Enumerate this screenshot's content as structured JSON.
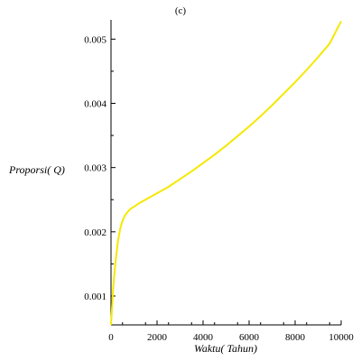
{
  "chart_data": {
    "type": "line",
    "title": "(c)",
    "xlabel": "Waktu( Tahun)",
    "ylabel": "Proporsi( Q)",
    "xlim": [
      0,
      10000
    ],
    "ylim": [
      0.00055,
      0.0053
    ],
    "x_ticks": [
      0,
      2000,
      4000,
      6000,
      8000,
      10000
    ],
    "x_tick_labels": [
      "0",
      "2000",
      "4000",
      "6000",
      "8000",
      "10000"
    ],
    "y_ticks": [
      0.001,
      0.002,
      0.003,
      0.004,
      0.005
    ],
    "y_tick_labels": [
      "0.001",
      "0.002",
      "0.003",
      "0.004",
      "0.005"
    ],
    "grid": false,
    "series": [
      {
        "color": "#f5e800",
        "x": [
          0,
          50,
          100,
          200,
          300,
          400,
          500,
          600,
          700,
          800,
          900,
          1000,
          1200,
          1500,
          2000,
          2500,
          3000,
          3500,
          4000,
          4500,
          5000,
          5500,
          6000,
          6500,
          7000,
          7500,
          8000,
          8500,
          9000,
          9500,
          10000
        ],
        "y": [
          0.00055,
          0.00085,
          0.00115,
          0.00155,
          0.00185,
          0.00205,
          0.00217,
          0.00225,
          0.0023,
          0.00234,
          0.00237,
          0.00239,
          0.00244,
          0.0025,
          0.0026,
          0.0027,
          0.00282,
          0.00294,
          0.00307,
          0.0032,
          0.00334,
          0.00349,
          0.00364,
          0.0038,
          0.00397,
          0.00415,
          0.00433,
          0.00452,
          0.00472,
          0.00493,
          0.00528
        ]
      }
    ]
  }
}
